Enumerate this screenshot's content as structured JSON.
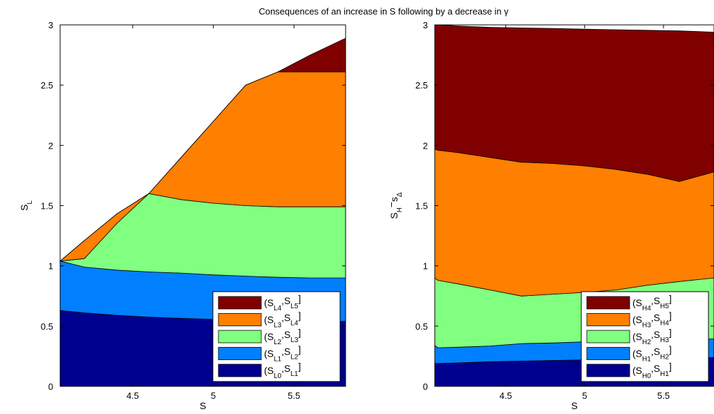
{
  "title": "Consequences of an increase in S following by a decrease in γ",
  "chart_data": [
    {
      "type": "area",
      "xlabel": "S",
      "ylabel": "S_L",
      "xlim": [
        4.05,
        5.82
      ],
      "ylim": [
        0,
        3
      ],
      "xticks": [
        "4.5",
        "5",
        "5.5"
      ],
      "xtick_values": [
        4.5,
        5,
        5.5
      ],
      "yticks": [
        "0",
        "0.5",
        "1",
        "1.5",
        "2",
        "2.5",
        "3"
      ],
      "ytick_values": [
        0,
        0.5,
        1,
        1.5,
        2,
        2.5,
        3
      ],
      "legend_position": "bottom-right",
      "colors": [
        "#00008f",
        "#0080ff",
        "#80ff80",
        "#ff7f00",
        "#800000"
      ],
      "legend": [
        {
          "base": "S",
          "sub1": "L0",
          "sub2": "L1",
          "series": 0
        },
        {
          "base": "S",
          "sub1": "L1",
          "sub2": "L2",
          "series": 1
        },
        {
          "base": "S",
          "sub1": "L2",
          "sub2": "L3",
          "series": 2
        },
        {
          "base": "S",
          "sub1": "L3",
          "sub2": "L4",
          "series": 3
        },
        {
          "base": "S",
          "sub1": "L4",
          "sub2": "L5",
          "series": 4
        }
      ],
      "x": [
        4.05,
        4.2,
        4.4,
        4.6,
        4.8,
        5.0,
        5.2,
        5.4,
        5.6,
        5.82
      ],
      "boundaries": [
        [
          0.0,
          0.0,
          0.0,
          0.0,
          0.0,
          0.0,
          0.0,
          0.0,
          0.0,
          0.0
        ],
        [
          0.63,
          0.61,
          0.59,
          0.575,
          0.565,
          0.555,
          0.548,
          0.543,
          0.54,
          0.54
        ],
        [
          1.04,
          0.99,
          0.965,
          0.95,
          0.94,
          0.925,
          0.915,
          0.905,
          0.9,
          0.9
        ],
        [
          1.04,
          1.06,
          1.35,
          1.6,
          1.55,
          1.52,
          1.5,
          1.49,
          1.49,
          1.49
        ],
        [
          1.04,
          1.21,
          1.43,
          1.6,
          1.9,
          2.2,
          2.5,
          2.61,
          2.61,
          2.61
        ],
        [
          1.04,
          1.21,
          1.43,
          1.6,
          1.9,
          2.2,
          2.5,
          2.61,
          2.75,
          2.89
        ]
      ]
    },
    {
      "type": "area",
      "xlabel": "S",
      "ylabel": "S_H − s_Δ",
      "xlim": [
        4.05,
        5.82
      ],
      "ylim": [
        0,
        3
      ],
      "xticks": [
        "4.5",
        "5",
        "5.5"
      ],
      "xtick_values": [
        4.5,
        5,
        5.5
      ],
      "yticks": [
        "0",
        "0.5",
        "1",
        "1.5",
        "2",
        "2.5",
        "3"
      ],
      "ytick_values": [
        0,
        0.5,
        1,
        1.5,
        2,
        2.5,
        3
      ],
      "legend_position": "bottom-right",
      "colors": [
        "#00008f",
        "#0080ff",
        "#80ff80",
        "#ff7f00",
        "#800000"
      ],
      "legend": [
        {
          "base": "S",
          "sub1": "H0",
          "sub2": "H1",
          "series": 0
        },
        {
          "base": "S",
          "sub1": "H1",
          "sub2": "H2",
          "series": 1
        },
        {
          "base": "S",
          "sub1": "H2",
          "sub2": "H3",
          "series": 2
        },
        {
          "base": "S",
          "sub1": "H3",
          "sub2": "H4",
          "series": 3
        },
        {
          "base": "S",
          "sub1": "H4",
          "sub2": "H5",
          "series": 4
        }
      ],
      "x": [
        4.05,
        4.07,
        4.2,
        4.4,
        4.6,
        4.8,
        5.0,
        5.2,
        5.4,
        5.6,
        5.82
      ],
      "boundaries": [
        [
          0.0,
          0.0,
          0.0,
          0.0,
          0.0,
          0.0,
          0.0,
          0.0,
          0.0,
          0.0,
          0.0
        ],
        [
          0.19,
          0.19,
          0.195,
          0.205,
          0.21,
          0.215,
          0.22,
          0.225,
          0.23,
          0.235,
          0.24
        ],
        [
          0.34,
          0.32,
          0.325,
          0.335,
          0.355,
          0.36,
          0.37,
          0.38,
          0.385,
          0.39,
          0.395
        ],
        [
          0.9,
          0.88,
          0.85,
          0.8,
          0.75,
          0.765,
          0.78,
          0.8,
          0.84,
          0.87,
          0.9
        ],
        [
          1.97,
          1.96,
          1.94,
          1.9,
          1.86,
          1.85,
          1.83,
          1.8,
          1.76,
          1.7,
          1.78
        ],
        [
          3.0,
          3.0,
          2.99,
          2.98,
          2.975,
          2.97,
          2.965,
          2.96,
          2.955,
          2.95,
          2.94
        ]
      ]
    }
  ]
}
